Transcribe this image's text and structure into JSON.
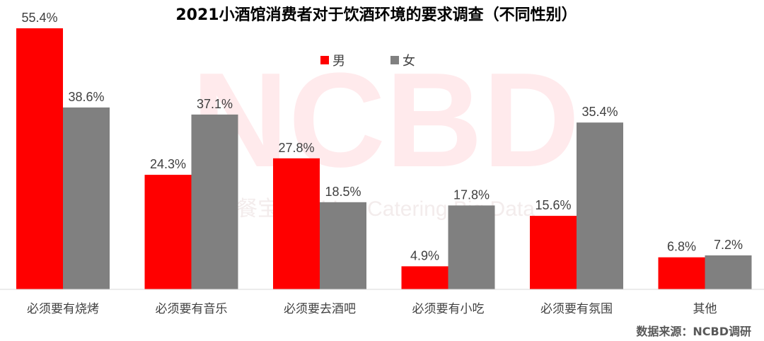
{
  "chart_data": {
    "type": "bar",
    "title": "2021小酒馆消费者对于饮酒环境的要求调查（不同性别）",
    "categories": [
      "必须要有烧烤",
      "必须要有音乐",
      "必须要去酒吧",
      "必须要有小吃",
      "必须要有氛围",
      "其他"
    ],
    "series": [
      {
        "name": "男",
        "values": [
          55.4,
          24.3,
          27.8,
          4.9,
          15.6,
          6.8
        ],
        "labels": [
          "55.4%",
          "24.3%",
          "27.8%",
          "4.9%",
          "15.6%",
          "6.8%"
        ],
        "color": "#ff0000"
      },
      {
        "name": "女",
        "values": [
          38.6,
          37.1,
          18.5,
          17.8,
          35.4,
          7.2
        ],
        "labels": [
          "38.6%",
          "37.1%",
          "18.5%",
          "17.8%",
          "35.4%",
          "7.2%"
        ],
        "color": "#808080"
      }
    ],
    "ylim": [
      0,
      55.4
    ],
    "unit": "%",
    "grid": false,
    "legend_position": "top-center",
    "source": "数据来源：NCBD调研"
  },
  "watermark": {
    "main": "NCBD",
    "sub": "餐宝典 China Catering Big Data"
  }
}
